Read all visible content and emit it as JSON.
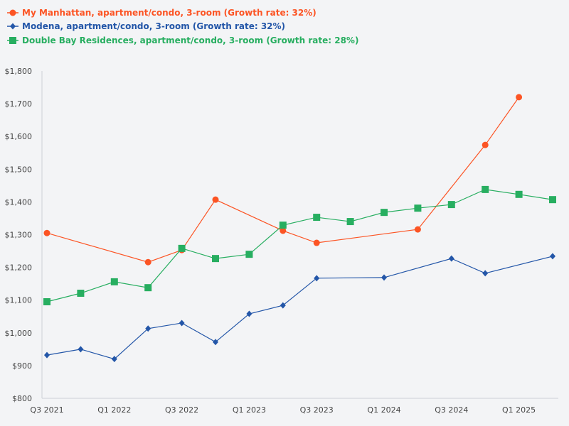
{
  "chart_data": {
    "type": "line",
    "title": "",
    "xlabel": "",
    "ylabel": "",
    "x": [
      "Q3 2021",
      "Q4 2021",
      "Q1 2022",
      "Q2 2022",
      "Q3 2022",
      "Q4 2022",
      "Q1 2023",
      "Q2 2023",
      "Q3 2023",
      "Q4 2023",
      "Q1 2024",
      "Q2 2024",
      "Q3 2024",
      "Q4 2024",
      "Q1 2025",
      "Q2 2025"
    ],
    "x_tick_labels": [
      "Q3 2021",
      "Q1 2022",
      "Q3 2022",
      "Q1 2023",
      "Q3 2023",
      "Q1 2024",
      "Q3 2024",
      "Q1 2025"
    ],
    "ylim": [
      800,
      1800
    ],
    "y_ticks": [
      800,
      900,
      1000,
      1100,
      1200,
      1300,
      1400,
      1500,
      1600,
      1700,
      1800
    ],
    "y_tick_labels": [
      "$800",
      "$900",
      "$1,000",
      "$1,100",
      "$1,200",
      "$1,300",
      "$1,400",
      "$1,500",
      "$1,600",
      "$1,700",
      "$1,800"
    ],
    "grid": false,
    "legend_placement": "top-left",
    "series": [
      {
        "name": "My Manhattan, apartment/condo, 3-room (Growth rate: 32%)",
        "color": "#fc5424",
        "marker": "circle",
        "values": [
          1305,
          null,
          null,
          1216,
          1253,
          1407,
          null,
          1312,
          1275,
          null,
          null,
          1316,
          null,
          1574,
          1720,
          null
        ]
      },
      {
        "name": "Modena, apartment/condo, 3-room (Growth rate: 32%)",
        "color": "#2356a8",
        "marker": "diamond",
        "values": [
          932,
          950,
          920,
          1013,
          1030,
          972,
          1058,
          1084,
          1167,
          null,
          1169,
          null,
          1227,
          1182,
          null,
          1234
        ]
      },
      {
        "name": "Double Bay Residences, apartment/condo, 3-room (Growth rate: 28%)",
        "color": "#27ae60",
        "marker": "square",
        "values": [
          1095,
          1121,
          1156,
          1138,
          1258,
          1227,
          1240,
          1329,
          1353,
          1340,
          1368,
          1381,
          1392,
          1438,
          1423,
          1407
        ]
      }
    ]
  }
}
